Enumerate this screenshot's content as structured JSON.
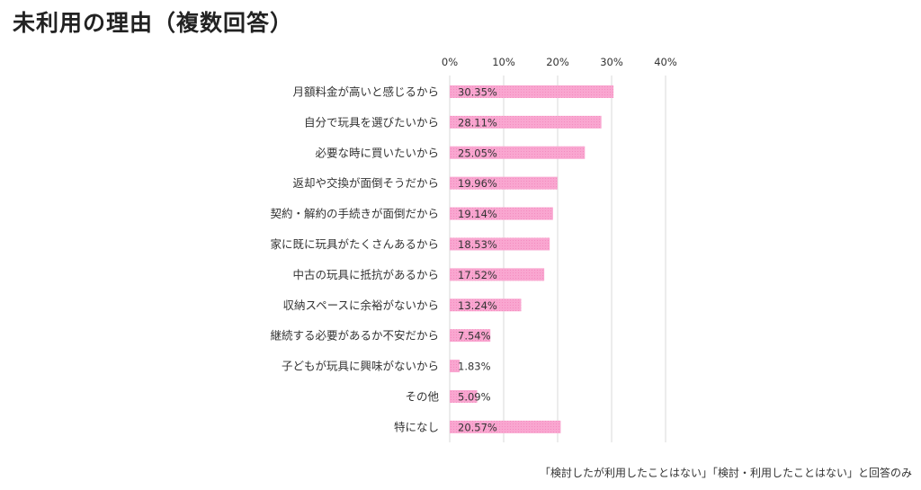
{
  "title": "未利用の理由（複数回答）",
  "footnote": "「検討したが利用したことはない」「検討・利用したことはない」と回答のみ",
  "colors": {
    "bar": "#f9a6d0",
    "grid": "#d9d9d9",
    "text": "#333333"
  },
  "chart_data": {
    "type": "bar",
    "orientation": "horizontal",
    "categories": [
      "月額料金が高いと感じるから",
      "自分で玩具を選びたいから",
      "必要な時に買いたいから",
      "返却や交換が面倒そうだから",
      "契約・解約の手続きが面倒だから",
      "家に既に玩具がたくさんあるから",
      "中古の玩具に抵抗があるから",
      "収納スペースに余裕がないから",
      "継続する必要があるか不安だから",
      "子どもが玩具に興味がないから",
      "その他",
      "特になし"
    ],
    "values": [
      30.35,
      28.11,
      25.05,
      19.96,
      19.14,
      18.53,
      17.52,
      13.24,
      7.54,
      1.83,
      5.09,
      20.57
    ],
    "value_labels": [
      "30.35%",
      "28.11%",
      "25.05%",
      "19.96%",
      "19.14%",
      "18.53%",
      "17.52%",
      "13.24%",
      "7.54%",
      "1.83%",
      "5.09%",
      "20.57%"
    ],
    "x_ticks": [
      "0%",
      "10%",
      "20%",
      "30%",
      "40%"
    ],
    "x_tick_values": [
      0,
      10,
      20,
      30,
      40
    ],
    "xlim": [
      0,
      40
    ],
    "axis_position": "top",
    "grid": true,
    "legend": "none"
  }
}
